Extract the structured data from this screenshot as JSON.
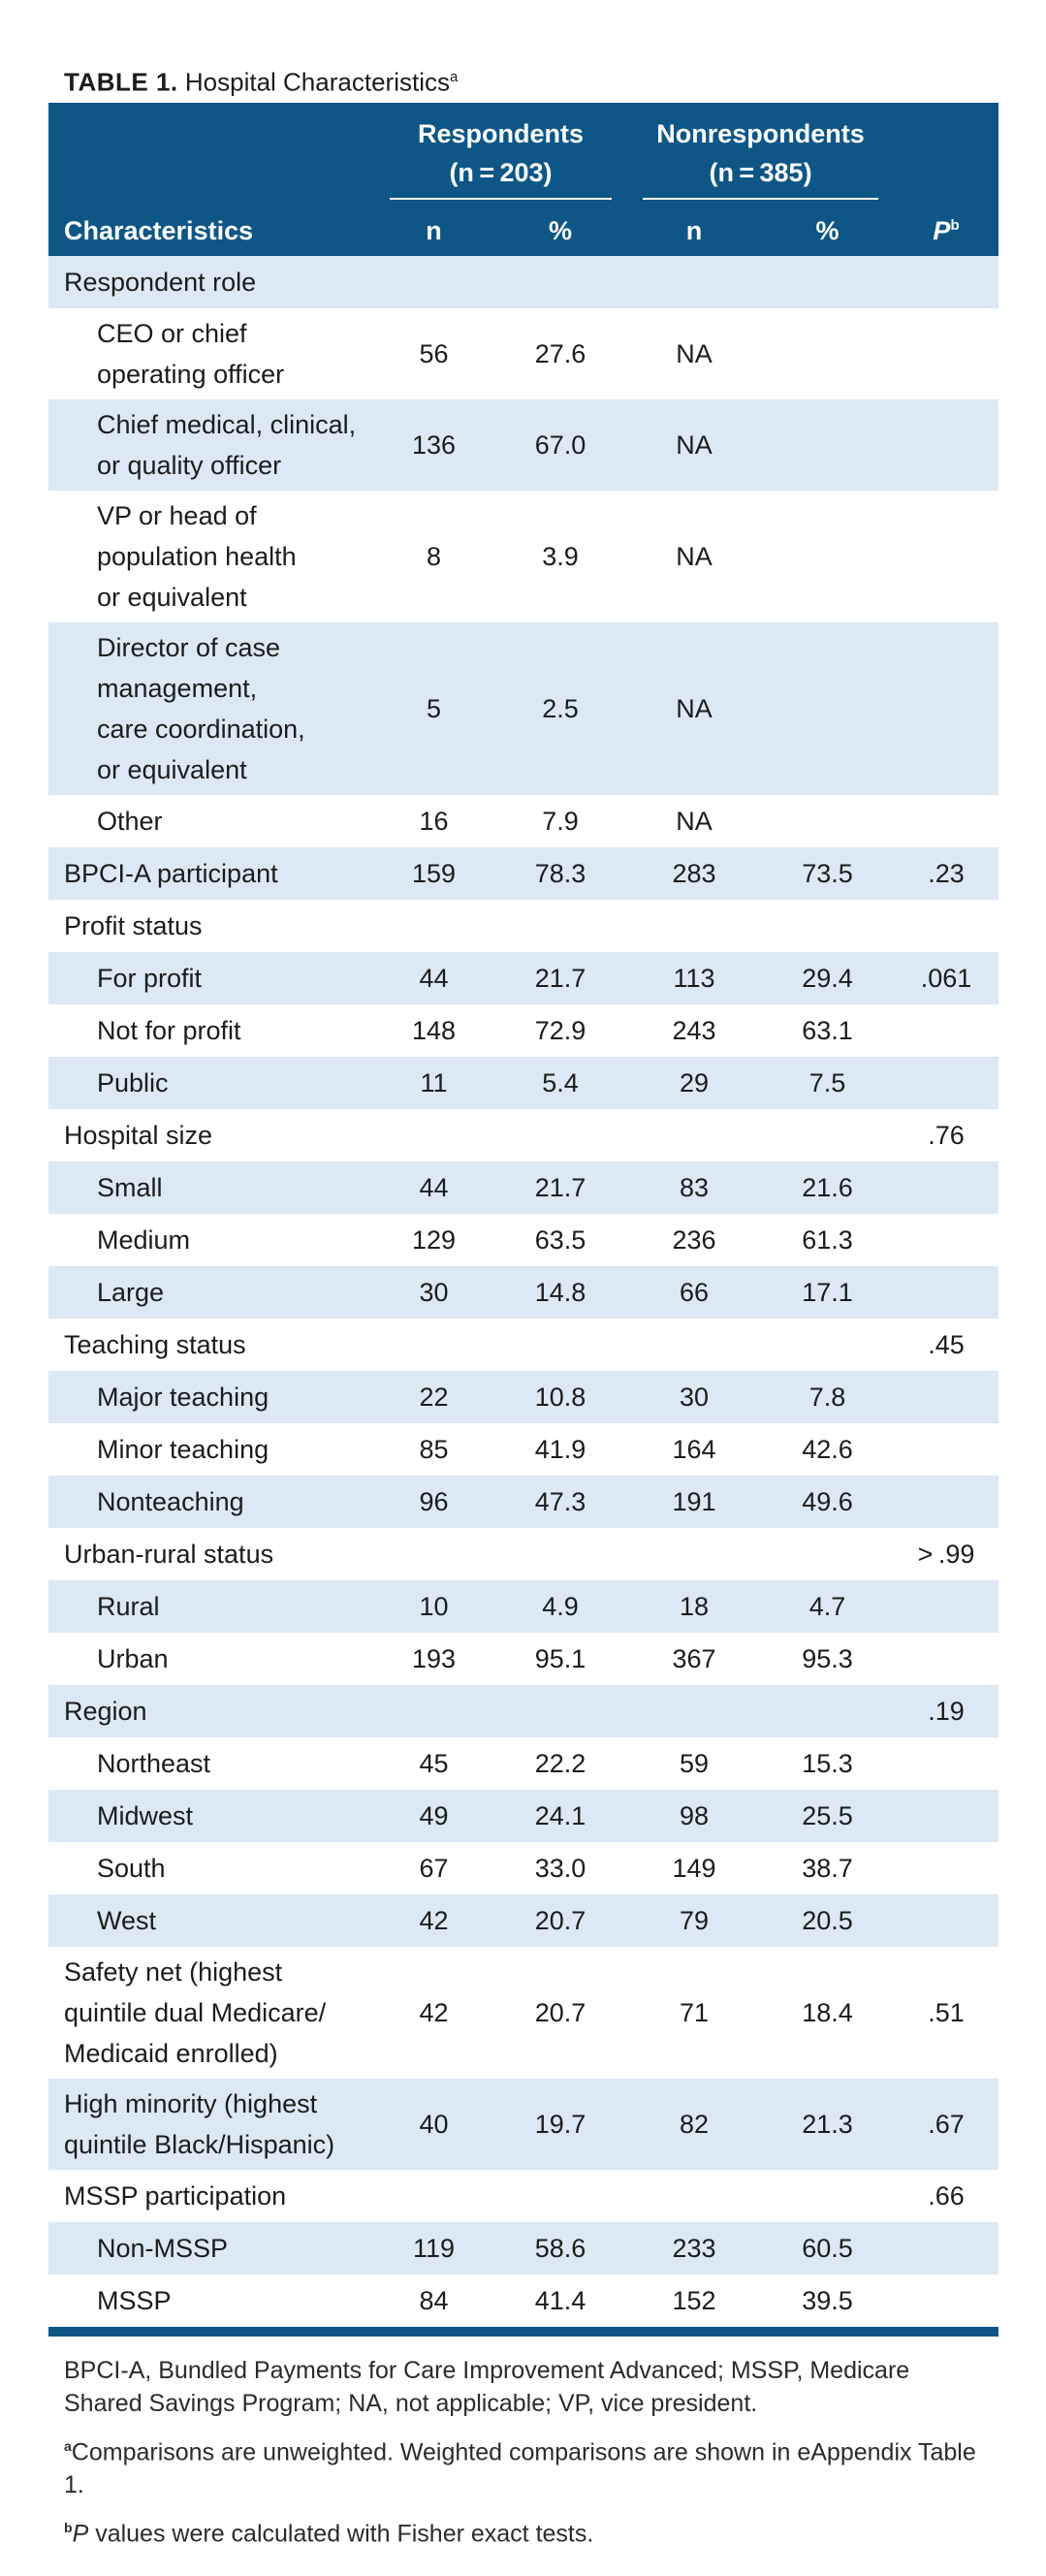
{
  "caption": {
    "label": "TABLE 1.",
    "title": "Hospital Characteristics",
    "sup": "a"
  },
  "header": {
    "group1": "Respondents",
    "group1_n": "(n = 203)",
    "group2": "Nonrespondents",
    "group2_n": "(n = 385)",
    "col_label": "Characteristics",
    "n1": "n",
    "pct1": "%",
    "n2": "n",
    "pct2": "%",
    "p": "P",
    "p_sup": "b"
  },
  "rows": [
    {
      "label": "Respondent role",
      "indent": false,
      "n1": "",
      "pct1": "",
      "n2": "",
      "pct2": "",
      "p": ""
    },
    {
      "label": "CEO or chief\noperating officer",
      "indent": true,
      "n1": "56",
      "pct1": "27.6",
      "n2": "NA",
      "pct2": "",
      "p": ""
    },
    {
      "label": "Chief medical, clinical,\nor quality officer",
      "indent": true,
      "n1": "136",
      "pct1": "67.0",
      "n2": "NA",
      "pct2": "",
      "p": ""
    },
    {
      "label": "VP or head of\npopulation health\nor equivalent",
      "indent": true,
      "n1": "8",
      "pct1": "3.9",
      "n2": "NA",
      "pct2": "",
      "p": ""
    },
    {
      "label": "Director of case\nmanagement,\ncare coordination,\nor equivalent",
      "indent": true,
      "n1": "5",
      "pct1": "2.5",
      "n2": "NA",
      "pct2": "",
      "p": ""
    },
    {
      "label": "Other",
      "indent": true,
      "n1": "16",
      "pct1": "7.9",
      "n2": "NA",
      "pct2": "",
      "p": ""
    },
    {
      "label": "BPCI-A participant",
      "indent": false,
      "n1": "159",
      "pct1": "78.3",
      "n2": "283",
      "pct2": "73.5",
      "p": ".23"
    },
    {
      "label": "Profit status",
      "indent": false,
      "n1": "",
      "pct1": "",
      "n2": "",
      "pct2": "",
      "p": ""
    },
    {
      "label": "For profit",
      "indent": true,
      "n1": "44",
      "pct1": "21.7",
      "n2": "113",
      "pct2": "29.4",
      "p": ".061"
    },
    {
      "label": "Not for profit",
      "indent": true,
      "n1": "148",
      "pct1": "72.9",
      "n2": "243",
      "pct2": "63.1",
      "p": ""
    },
    {
      "label": "Public",
      "indent": true,
      "n1": "11",
      "pct1": "5.4",
      "n2": "29",
      "pct2": "7.5",
      "p": ""
    },
    {
      "label": "Hospital size",
      "indent": false,
      "n1": "",
      "pct1": "",
      "n2": "",
      "pct2": "",
      "p": ".76"
    },
    {
      "label": "Small",
      "indent": true,
      "n1": "44",
      "pct1": "21.7",
      "n2": "83",
      "pct2": "21.6",
      "p": ""
    },
    {
      "label": "Medium",
      "indent": true,
      "n1": "129",
      "pct1": "63.5",
      "n2": "236",
      "pct2": "61.3",
      "p": ""
    },
    {
      "label": "Large",
      "indent": true,
      "n1": "30",
      "pct1": "14.8",
      "n2": "66",
      "pct2": "17.1",
      "p": ""
    },
    {
      "label": "Teaching status",
      "indent": false,
      "n1": "",
      "pct1": "",
      "n2": "",
      "pct2": "",
      "p": ".45"
    },
    {
      "label": "Major teaching",
      "indent": true,
      "n1": "22",
      "pct1": "10.8",
      "n2": "30",
      "pct2": "7.8",
      "p": ""
    },
    {
      "label": "Minor teaching",
      "indent": true,
      "n1": "85",
      "pct1": "41.9",
      "n2": "164",
      "pct2": "42.6",
      "p": ""
    },
    {
      "label": "Nonteaching",
      "indent": true,
      "n1": "96",
      "pct1": "47.3",
      "n2": "191",
      "pct2": "49.6",
      "p": ""
    },
    {
      "label": "Urban-rural status",
      "indent": false,
      "n1": "",
      "pct1": "",
      "n2": "",
      "pct2": "",
      "p": "> .99"
    },
    {
      "label": "Rural",
      "indent": true,
      "n1": "10",
      "pct1": "4.9",
      "n2": "18",
      "pct2": "4.7",
      "p": ""
    },
    {
      "label": "Urban",
      "indent": true,
      "n1": "193",
      "pct1": "95.1",
      "n2": "367",
      "pct2": "95.3",
      "p": ""
    },
    {
      "label": "Region",
      "indent": false,
      "n1": "",
      "pct1": "",
      "n2": "",
      "pct2": "",
      "p": ".19"
    },
    {
      "label": "Northeast",
      "indent": true,
      "n1": "45",
      "pct1": "22.2",
      "n2": "59",
      "pct2": "15.3",
      "p": ""
    },
    {
      "label": "Midwest",
      "indent": true,
      "n1": "49",
      "pct1": "24.1",
      "n2": "98",
      "pct2": "25.5",
      "p": ""
    },
    {
      "label": "South",
      "indent": true,
      "n1": "67",
      "pct1": "33.0",
      "n2": "149",
      "pct2": "38.7",
      "p": ""
    },
    {
      "label": "West",
      "indent": true,
      "n1": "42",
      "pct1": "20.7",
      "n2": "79",
      "pct2": "20.5",
      "p": ""
    },
    {
      "label": "Safety net (highest\nquintile dual Medicare/\nMedicaid enrolled)",
      "indent": false,
      "n1": "42",
      "pct1": "20.7",
      "n2": "71",
      "pct2": "18.4",
      "p": ".51"
    },
    {
      "label": "High minority (highest\nquintile Black/Hispanic)",
      "indent": false,
      "n1": "40",
      "pct1": "19.7",
      "n2": "82",
      "pct2": "21.3",
      "p": ".67"
    },
    {
      "label": "MSSP participation",
      "indent": false,
      "n1": "",
      "pct1": "",
      "n2": "",
      "pct2": "",
      "p": ".66"
    },
    {
      "label": "Non-MSSP",
      "indent": true,
      "n1": "119",
      "pct1": "58.6",
      "n2": "233",
      "pct2": "60.5",
      "p": ""
    },
    {
      "label": "MSSP",
      "indent": true,
      "n1": "84",
      "pct1": "41.4",
      "n2": "152",
      "pct2": "39.5",
      "p": ""
    }
  ],
  "footnotes": {
    "abbrev": "BPCI-A, Bundled Payments for Care Improvement Advanced; MSSP, Medicare Shared Savings Program; NA, not applicable; VP, vice president.",
    "a_mark": "a",
    "a_text": "Comparisons are unweighted. Weighted comparisons are shown in eAppendix Table 1.",
    "b_mark": "b",
    "b_p": "P",
    "b_text": " values were calculated with Fisher exact tests."
  }
}
